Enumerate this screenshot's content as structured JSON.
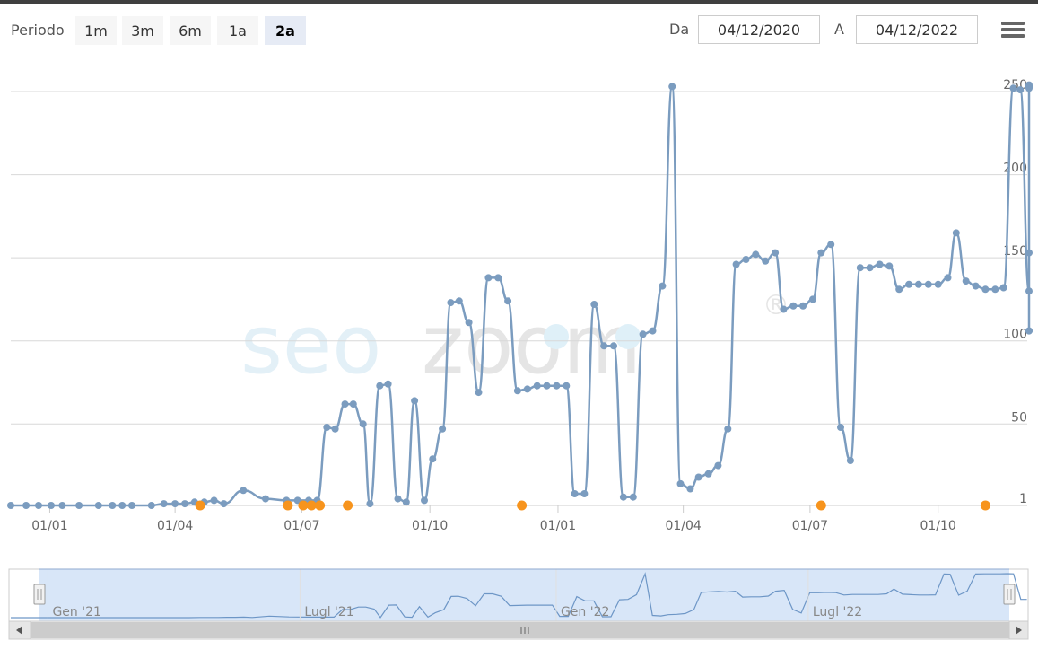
{
  "toolbar": {
    "period_label": "Periodo",
    "ranges": [
      "1m",
      "3m",
      "6m",
      "1a",
      "2a"
    ],
    "selected_range": "2a",
    "from_label": "Da",
    "from_value": "04/12/2020",
    "to_label": "A",
    "to_value": "04/12/2022"
  },
  "watermark": {
    "text": "seozoom",
    "registered": "®"
  },
  "colors": {
    "line": "#7b9cbf",
    "event": "#f7941d",
    "grid": "#d8d8d8",
    "navigator_fill": "#d4e3f7",
    "navigator_line": "#6d96c6"
  },
  "chart_data": {
    "type": "line",
    "title": "",
    "x_ticks": [
      "01/01",
      "01/04",
      "01/07",
      "01/10",
      "01/01",
      "01/04",
      "01/07",
      "01/10"
    ],
    "y_ticks": [
      1,
      50,
      100,
      150,
      200,
      250
    ],
    "ylim": [
      1,
      250
    ],
    "y_axis": "reversed",
    "grid": true,
    "x_range": [
      "2020-12-04",
      "2022-12-04"
    ],
    "series": [
      {
        "points": [
          [
            "2020-12-04",
            1
          ],
          [
            "2020-12-15",
            1
          ],
          [
            "2020-12-24",
            1
          ],
          [
            "2021-01-02",
            1
          ],
          [
            "2021-01-10",
            1
          ],
          [
            "2021-01-22",
            1
          ],
          [
            "2021-02-05",
            1
          ],
          [
            "2021-02-15",
            1
          ],
          [
            "2021-02-22",
            1
          ],
          [
            "2021-03-01",
            1
          ],
          [
            "2021-03-15",
            1
          ],
          [
            "2021-03-24",
            2
          ],
          [
            "2021-04-01",
            2
          ],
          [
            "2021-04-08",
            2
          ],
          [
            "2021-04-15",
            3
          ],
          [
            "2021-04-22",
            3
          ],
          [
            "2021-04-29",
            4
          ],
          [
            "2021-05-06",
            2
          ],
          [
            "2021-05-20",
            10
          ],
          [
            "2021-06-05",
            5
          ],
          [
            "2021-06-20",
            4
          ],
          [
            "2021-06-28",
            4
          ],
          [
            "2021-07-06",
            4
          ],
          [
            "2021-07-12",
            4
          ],
          [
            "2021-07-19",
            48
          ],
          [
            "2021-07-25",
            47
          ],
          [
            "2021-08-01",
            62
          ],
          [
            "2021-08-07",
            62
          ],
          [
            "2021-08-14",
            50
          ],
          [
            "2021-08-19",
            2
          ],
          [
            "2021-08-26",
            73
          ],
          [
            "2021-09-01",
            74
          ],
          [
            "2021-09-08",
            5
          ],
          [
            "2021-09-14",
            3
          ],
          [
            "2021-09-20",
            64
          ],
          [
            "2021-09-27",
            4
          ],
          [
            "2021-10-03",
            29
          ],
          [
            "2021-10-10",
            47
          ],
          [
            "2021-10-16",
            123
          ],
          [
            "2021-10-22",
            124
          ],
          [
            "2021-10-29",
            111
          ],
          [
            "2021-11-05",
            69
          ],
          [
            "2021-11-12",
            138
          ],
          [
            "2021-11-19",
            138
          ],
          [
            "2021-11-26",
            124
          ],
          [
            "2021-12-03",
            70
          ],
          [
            "2021-12-10",
            71
          ],
          [
            "2021-12-17",
            73
          ],
          [
            "2021-12-24",
            73
          ],
          [
            "2021-12-31",
            73
          ],
          [
            "2022-01-07",
            73
          ],
          [
            "2022-01-13",
            8
          ],
          [
            "2022-01-20",
            8
          ],
          [
            "2022-01-27",
            122
          ],
          [
            "2022-02-03",
            97
          ],
          [
            "2022-02-10",
            97
          ],
          [
            "2022-02-17",
            6
          ],
          [
            "2022-02-24",
            6
          ],
          [
            "2022-03-03",
            104
          ],
          [
            "2022-03-10",
            106
          ],
          [
            "2022-03-17",
            133
          ],
          [
            "2022-03-24",
            253
          ],
          [
            "2022-03-30",
            14
          ],
          [
            "2022-04-06",
            11
          ],
          [
            "2022-04-12",
            18
          ],
          [
            "2022-04-19",
            20
          ],
          [
            "2022-04-26",
            25
          ],
          [
            "2022-05-03",
            47
          ],
          [
            "2022-05-09",
            146
          ],
          [
            "2022-05-16",
            149
          ],
          [
            "2022-05-23",
            152
          ],
          [
            "2022-05-30",
            148
          ],
          [
            "2022-06-06",
            153
          ],
          [
            "2022-06-12",
            119
          ],
          [
            "2022-06-19",
            121
          ],
          [
            "2022-06-26",
            121
          ],
          [
            "2022-07-03",
            125
          ],
          [
            "2022-07-09",
            153
          ],
          [
            "2022-07-16",
            158
          ],
          [
            "2022-07-23",
            48
          ],
          [
            "2022-07-30",
            28
          ],
          [
            "2022-08-06",
            144
          ],
          [
            "2022-08-13",
            144
          ],
          [
            "2022-08-20",
            146
          ],
          [
            "2022-08-27",
            145
          ],
          [
            "2022-09-03",
            131
          ],
          [
            "2022-09-10",
            134
          ],
          [
            "2022-09-17",
            134
          ],
          [
            "2022-09-24",
            134
          ],
          [
            "2022-10-01",
            134
          ],
          [
            "2022-10-08",
            138
          ],
          [
            "2022-10-14",
            165
          ],
          [
            "2022-10-21",
            136
          ],
          [
            "2022-10-28",
            133
          ],
          [
            "2022-11-04",
            131
          ],
          [
            "2022-11-11",
            131
          ],
          [
            "2022-11-17",
            132
          ],
          [
            "2022-11-24",
            252
          ],
          [
            "2022-11-29",
            251
          ]
        ]
      }
    ],
    "series_tail": [
      [
        "2022-12-06",
        130
      ],
      [
        "2022-12-13",
        153
      ],
      [
        "2022-12-20",
        252
      ],
      [
        "2022-12-27",
        253
      ],
      [
        "2023-01-03",
        253
      ],
      [
        "2023-01-09",
        253
      ],
      [
        "2023-01-15",
        254
      ],
      [
        "2023-01-20",
        253
      ],
      [
        "2023-01-26",
        106
      ],
      [
        "2023-01-31",
        106
      ]
    ],
    "events": [
      "2021-04-19",
      "2021-06-21",
      "2021-07-02",
      "2021-07-08",
      "2021-07-14",
      "2021-08-03",
      "2021-12-06",
      "2022-07-09",
      "2022-11-04"
    ],
    "navigator": {
      "labels": [
        "Gen '21",
        "Lugl '21",
        "Gen '22",
        "Lugl '22"
      ]
    }
  }
}
